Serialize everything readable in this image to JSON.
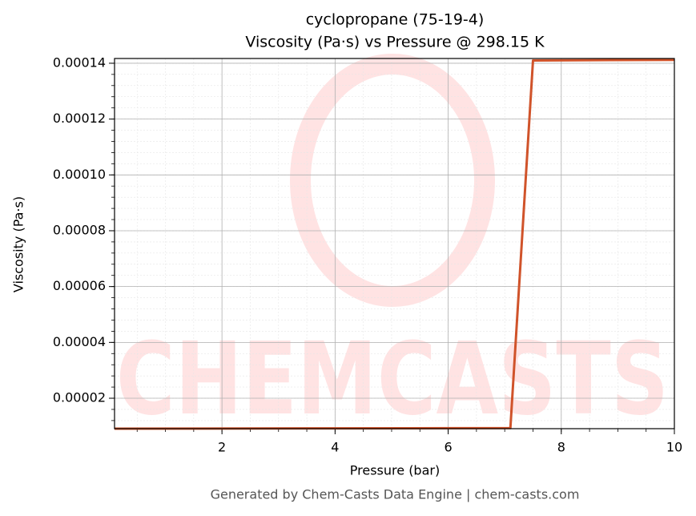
{
  "chart_data": {
    "type": "line",
    "title": "cyclopropane (75-19-4)",
    "subtitle": "Viscosity (Pa·s) vs Pressure @ 298.15 K",
    "x_label": "Pressure (bar)",
    "y_label": "Viscosity (Pa·s)",
    "x": [
      0.1,
      7.1,
      7.5,
      10
    ],
    "values": [
      9.1e-06,
      9.3e-06,
      0.000141,
      0.0001412
    ],
    "color": "#d0532a",
    "xlim": [
      0.1,
      10
    ],
    "ylim": [
      9.1e-06,
      0.0001417
    ],
    "xticks": [
      2,
      4,
      6,
      8,
      10
    ],
    "yticks": [
      {
        "value": 2e-05,
        "label": "0.00002"
      },
      {
        "value": 4e-05,
        "label": "0.00004"
      },
      {
        "value": 6e-05,
        "label": "0.00006"
      },
      {
        "value": 8e-05,
        "label": "0.00008"
      },
      {
        "value": 0.0001,
        "label": "0.00010"
      },
      {
        "value": 0.00012,
        "label": "0.00012"
      },
      {
        "value": 0.00014,
        "label": "0.00014"
      }
    ],
    "grid": true,
    "watermark": "CHEMCASTS",
    "footer": "Generated by Chem-Casts Data Engine | chem-casts.com"
  }
}
